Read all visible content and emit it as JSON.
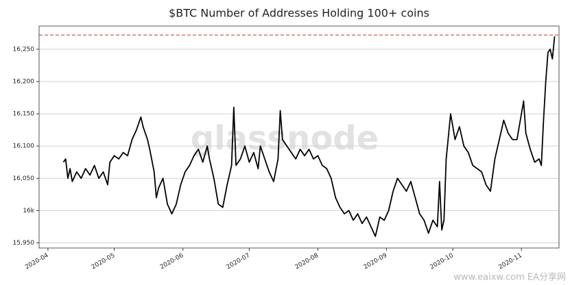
{
  "chart_data": {
    "type": "line",
    "title": "$BTC Number of Addresses Holding 100+ coins",
    "watermark": "glassnode",
    "source_watermark": "www.eaixw.com EA分享网",
    "x": [
      7,
      8,
      9,
      10,
      11,
      13,
      15,
      17,
      19,
      21,
      23,
      25,
      27,
      28,
      30,
      32,
      34,
      36,
      38,
      40,
      42,
      43,
      45,
      46,
      48,
      49,
      50,
      52,
      54,
      56,
      58,
      60,
      62,
      64,
      66,
      68,
      70,
      72,
      73,
      75,
      77,
      79,
      81,
      83,
      84,
      85,
      87,
      89,
      91,
      93,
      95,
      96,
      98,
      100,
      102,
      104,
      105,
      106,
      108,
      110,
      112,
      114,
      116,
      118,
      120,
      122,
      124,
      126,
      128,
      130,
      132,
      134,
      136,
      138,
      140,
      142,
      144,
      146,
      148,
      150,
      152,
      154,
      156,
      158,
      160,
      162,
      164,
      166,
      168,
      170,
      172,
      174,
      176,
      177,
      178,
      179,
      180,
      182,
      184,
      186,
      188,
      190,
      192,
      194,
      196,
      198,
      200,
      202,
      204,
      206,
      208,
      210,
      212,
      214,
      215,
      216,
      218,
      220,
      222,
      223,
      224,
      225,
      226,
      227,
      228,
      229
    ],
    "series": [
      {
        "name": "Addresses",
        "color": "#000000",
        "values": [
          16075,
          16080,
          16050,
          16065,
          16045,
          16060,
          16050,
          16065,
          16055,
          16070,
          16050,
          16060,
          16040,
          16075,
          16085,
          16080,
          16090,
          16085,
          16110,
          16125,
          16145,
          16130,
          16110,
          16095,
          16060,
          16020,
          16035,
          16050,
          16010,
          15995,
          16010,
          16040,
          16060,
          16070,
          16085,
          16095,
          16075,
          16100,
          16080,
          16050,
          16010,
          16005,
          16040,
          16070,
          16160,
          16070,
          16080,
          16100,
          16075,
          16090,
          16065,
          16100,
          16080,
          16060,
          16045,
          16080,
          16155,
          16110,
          16100,
          16090,
          16080,
          16095,
          16085,
          16095,
          16080,
          16085,
          16070,
          16065,
          16050,
          16020,
          16005,
          15995,
          16000,
          15985,
          15995,
          15980,
          15990,
          15975,
          15960,
          15990,
          15985,
          16000,
          16030,
          16050,
          16040,
          16030,
          16045,
          16020,
          15995,
          15985,
          15965,
          15985,
          15975,
          16045,
          15970,
          15985,
          16080,
          16150,
          16110,
          16130,
          16100,
          16090,
          16070,
          16065,
          16060,
          16040,
          16030,
          16080,
          16110,
          16140,
          16120,
          16110,
          16110,
          16150,
          16170,
          16120,
          16095,
          16075,
          16080,
          16070,
          16140,
          16200,
          16245,
          16250,
          16235,
          16270
        ]
      }
    ],
    "xlim": [
      -4,
      231
    ],
    "xticks": [
      {
        "value": 0,
        "label": "2020-04"
      },
      {
        "value": 30,
        "label": "2020-05"
      },
      {
        "value": 61,
        "label": "2020-06"
      },
      {
        "value": 91,
        "label": "2020-07"
      },
      {
        "value": 122,
        "label": "2020-08"
      },
      {
        "value": 153,
        "label": "2020-09"
      },
      {
        "value": 183,
        "label": "2020-10"
      },
      {
        "value": 214,
        "label": "2020-11"
      }
    ],
    "ylim": [
      15942,
      16286
    ],
    "yticks": [
      {
        "value": 15950,
        "label": "15,950"
      },
      {
        "value": 16000,
        "label": "16k"
      },
      {
        "value": 16050,
        "label": "16,050"
      },
      {
        "value": 16100,
        "label": "16,100"
      },
      {
        "value": 16150,
        "label": "16,150"
      },
      {
        "value": 16200,
        "label": "16,200"
      },
      {
        "value": 16250,
        "label": "16,250"
      }
    ],
    "grid": true,
    "reference_line": {
      "value": 16272,
      "color": "#d62728"
    }
  }
}
